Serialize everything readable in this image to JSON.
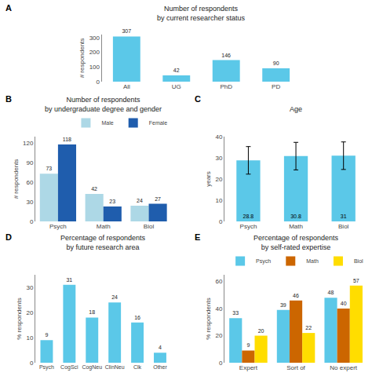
{
  "chart_data": [
    {
      "type": "bar",
      "title": "Number of respondents\nby current researcher status",
      "annotations": [
        {
          "text": "A"
        }
      ],
      "categories": [
        "All",
        "UG",
        "PhD",
        "PD"
      ],
      "values": [
        307,
        42,
        146,
        90
      ],
      "color": "#5BC8E8",
      "ylabel": "# respondents",
      "ylim": [
        0,
        320
      ],
      "yticks": [
        0,
        100,
        200,
        300
      ],
      "data_labels": true,
      "grid": false
    },
    {
      "type": "bar",
      "title": "Number of respondents\nby undergraduate degree and gender",
      "annotations": [
        {
          "text": "B"
        }
      ],
      "categories": [
        "Psych",
        "Math",
        "Biol"
      ],
      "series": [
        {
          "name": "Male",
          "color": "#ADD8E6",
          "values": [
            73,
            42,
            24
          ]
        },
        {
          "name": "Female",
          "color": "#1F5DAD",
          "values": [
            118,
            23,
            27
          ]
        }
      ],
      "ylabel": "# respondents",
      "ylim": [
        0,
        130
      ],
      "yticks": [
        0,
        30,
        60,
        90,
        120
      ],
      "data_labels": true,
      "legend": "upper right",
      "grid": false
    },
    {
      "type": "bar",
      "title": "Age",
      "annotations": [
        {
          "text": "C"
        }
      ],
      "categories": [
        "Psych",
        "Math",
        "Biol"
      ],
      "values": [
        28.8,
        30.8,
        31
      ],
      "errors": [
        6.5,
        6.5,
        6.5
      ],
      "color": "#5BC8E8",
      "ylabel": "years",
      "ylim": [
        0,
        40
      ],
      "yticks": [
        0,
        10,
        20,
        30,
        40
      ],
      "data_labels": true,
      "grid": false
    },
    {
      "type": "bar",
      "title": "Percentage of respondents\nby future research area",
      "annotations": [
        {
          "text": "D"
        }
      ],
      "categories": [
        "Psych",
        "CogSci",
        "CogNeu",
        "ClinNeu",
        "Clk",
        "Other"
      ],
      "values": [
        9,
        31,
        18,
        24,
        16,
        4
      ],
      "color": "#5BC8E8",
      "ylabel": "% respondents",
      "ylim": [
        0,
        35
      ],
      "yticks": [
        0,
        10,
        20,
        30
      ],
      "data_labels": true,
      "grid": false
    },
    {
      "type": "bar",
      "title": "Percentage of respondents\nby self-rated expertise",
      "annotations": [
        {
          "text": "E"
        }
      ],
      "categories": [
        "Expert",
        "Sort of",
        "No expert"
      ],
      "series": [
        {
          "name": "Psych",
          "color": "#5BC8E8",
          "values": [
            33,
            39,
            48
          ]
        },
        {
          "name": "Math",
          "color": "#CC6600",
          "values": [
            9,
            46,
            40
          ]
        },
        {
          "name": "Biol",
          "color": "#FFDD00",
          "values": [
            20,
            22,
            57
          ]
        }
      ],
      "ylabel": "% respondents",
      "ylim": [
        0,
        65
      ],
      "yticks": [
        0,
        20,
        40,
        60
      ],
      "data_labels": true,
      "legend": "upper left",
      "grid": false
    }
  ]
}
